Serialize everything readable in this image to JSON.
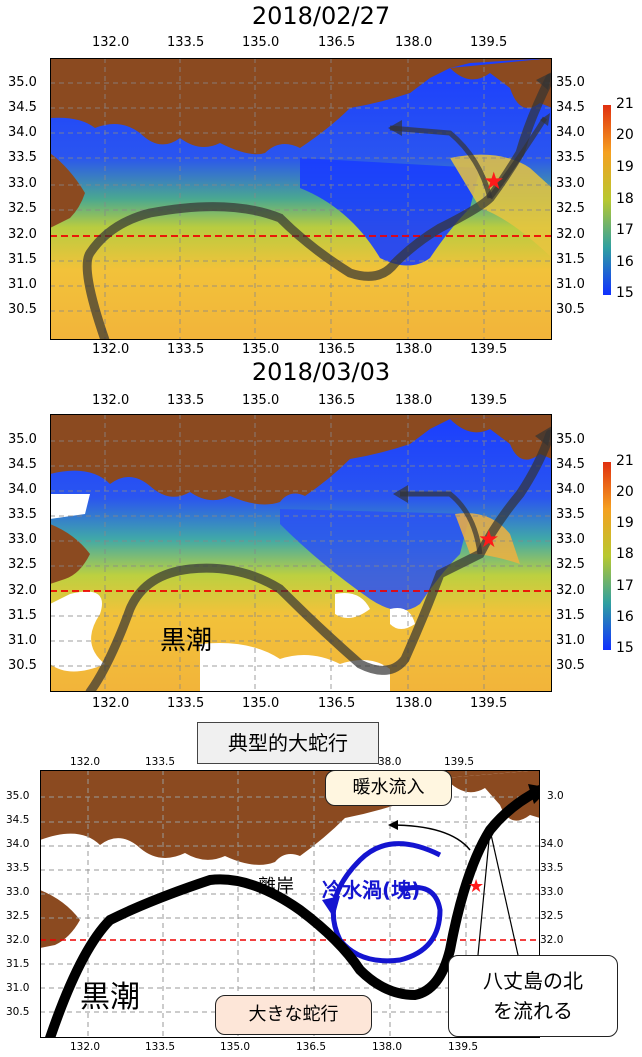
{
  "panel1": {
    "title": "2018/02/27",
    "lon_ticks": [
      "132.0",
      "133.5",
      "135.0",
      "136.5",
      "138.0",
      "139.5"
    ],
    "lat_ticks": [
      "35.0",
      "34.5",
      "34.0",
      "33.5",
      "33.0",
      "32.5",
      "32.0",
      "31.5",
      "31.0",
      "30.5"
    ],
    "colorbar_ticks": [
      "21",
      "20",
      "19",
      "18",
      "17",
      "16",
      "15"
    ]
  },
  "panel2": {
    "title": "2018/03/03",
    "lon_ticks": [
      "132.0",
      "133.5",
      "135.0",
      "136.5",
      "138.0",
      "139.5"
    ],
    "lat_ticks": [
      "35.0",
      "34.5",
      "34.0",
      "33.5",
      "33.0",
      "32.5",
      "32.0",
      "31.5",
      "31.0",
      "30.5"
    ],
    "colorbar_ticks": [
      "21",
      "20",
      "19",
      "18",
      "17",
      "16",
      "15"
    ],
    "kuroshio_label": "黒潮"
  },
  "panel3": {
    "header": "典型的大蛇行",
    "lon_ticks": [
      "132.0",
      "133.5",
      "135.0",
      "136.5",
      "138.0",
      "139.5"
    ],
    "lon_ticks_top_partial": [
      "38.0",
      "139.5"
    ],
    "lat_ticks": [
      "35.0",
      "34.5",
      "34.0",
      "33.5",
      "33.0",
      "32.5",
      "32.0",
      "31.5",
      "31.0",
      "30.5"
    ],
    "right_lat_partial": [
      "3.0",
      "34.0",
      "33.5",
      "33.0",
      "32.5",
      "32.0"
    ],
    "warm_inflow": "暖水流入",
    "cold_eddy": "冷水渦(塊)",
    "offshore": "離岸",
    "kuroshio_label": "黒潮",
    "large_meander": "大きな蛇行",
    "hachijo_line1": "八丈島の北",
    "hachijo_line2": "を流れる"
  }
}
